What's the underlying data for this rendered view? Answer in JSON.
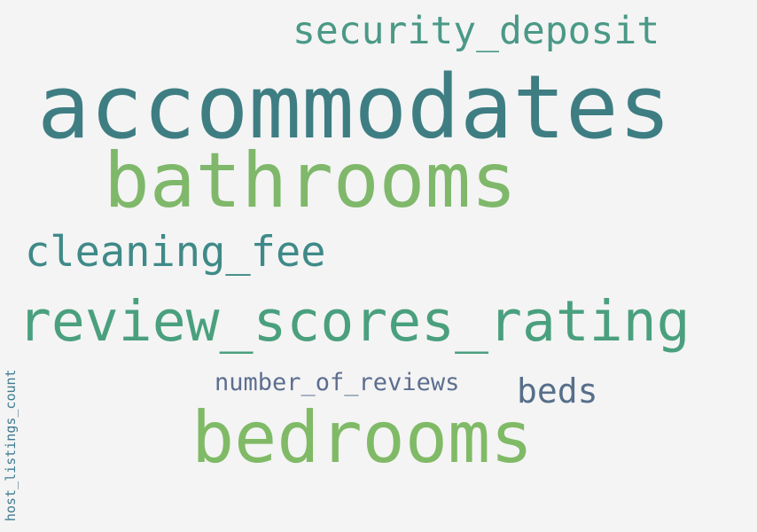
{
  "words": [
    {
      "id": "security",
      "text": "security_deposit",
      "color": "#4a9986"
    },
    {
      "id": "accommodates",
      "text": "accommodates",
      "color": "#3e7e83"
    },
    {
      "id": "bathrooms",
      "text": "bathrooms",
      "color": "#7fb86a"
    },
    {
      "id": "cleaning",
      "text": "cleaning_fee",
      "color": "#3f8a88"
    },
    {
      "id": "review",
      "text": "review_scores_rating",
      "color": "#4aa07e"
    },
    {
      "id": "numrev",
      "text": "number_of_reviews",
      "color": "#5d6e8f"
    },
    {
      "id": "beds",
      "text": "beds",
      "color": "#566f8a"
    },
    {
      "id": "bedrooms",
      "text": "bedrooms",
      "color": "#80ba66"
    },
    {
      "id": "host",
      "text": "host_listings_count",
      "color": "#3f7b90"
    }
  ]
}
